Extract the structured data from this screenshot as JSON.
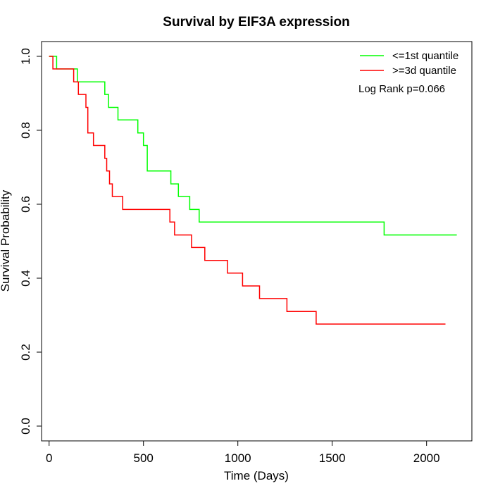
{
  "chart_data": {
    "type": "line",
    "step": true,
    "title": "Survival by EIF3A expression",
    "xlabel": "Time (Days)",
    "ylabel": "Survival Probability",
    "xlim": [
      -40,
      2240
    ],
    "ylim": [
      -0.04,
      1.04
    ],
    "x_ticks": [
      0,
      500,
      1000,
      1500,
      2000
    ],
    "y_ticks": [
      0.0,
      0.2,
      0.4,
      0.6,
      0.8,
      1.0
    ],
    "x_tick_labels": [
      "0",
      "500",
      "1000",
      "1500",
      "2000"
    ],
    "y_tick_labels": [
      "0.0",
      "0.2",
      "0.4",
      "0.6",
      "0.8",
      "1.0"
    ],
    "legend_position": "top-right",
    "annotation": "Log Rank p=0.066",
    "grid": false,
    "series": [
      {
        "name": "<=1st quantile",
        "color": "#00ff00",
        "x": [
          0,
          40,
          150,
          295,
          315,
          365,
          470,
          500,
          520,
          645,
          685,
          745,
          795,
          1775,
          2160
        ],
        "y": [
          1.0,
          0.966,
          0.931,
          0.897,
          0.862,
          0.828,
          0.793,
          0.759,
          0.69,
          0.655,
          0.621,
          0.586,
          0.552,
          0.517,
          0.517
        ]
      },
      {
        "name": ">=3d quantile",
        "color": "#ff0000",
        "x": [
          0,
          20,
          130,
          155,
          195,
          205,
          235,
          295,
          305,
          320,
          335,
          390,
          640,
          665,
          755,
          825,
          945,
          1025,
          1115,
          1260,
          1415,
          2100
        ],
        "y": [
          1.0,
          0.966,
          0.931,
          0.897,
          0.862,
          0.793,
          0.759,
          0.724,
          0.69,
          0.655,
          0.621,
          0.586,
          0.552,
          0.517,
          0.483,
          0.448,
          0.414,
          0.379,
          0.345,
          0.31,
          0.276,
          0.276
        ]
      }
    ]
  }
}
